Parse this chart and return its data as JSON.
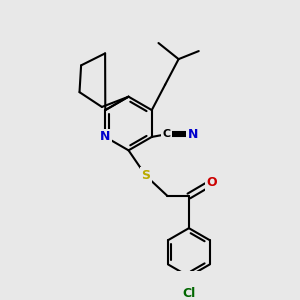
{
  "bg_color": "#e8e8e8",
  "bond_color": "#000000",
  "bond_width": 1.5,
  "atom_colors": {
    "N_ring": "#0000cc",
    "N_cn": "#0000cc",
    "S": "#bbaa00",
    "O": "#cc0000",
    "Cl": "#006600",
    "C": "#000000"
  },
  "figsize": [
    3.0,
    3.0
  ],
  "dpi": 100,
  "xlim": [
    0,
    10
  ],
  "ylim": [
    0,
    10
  ]
}
